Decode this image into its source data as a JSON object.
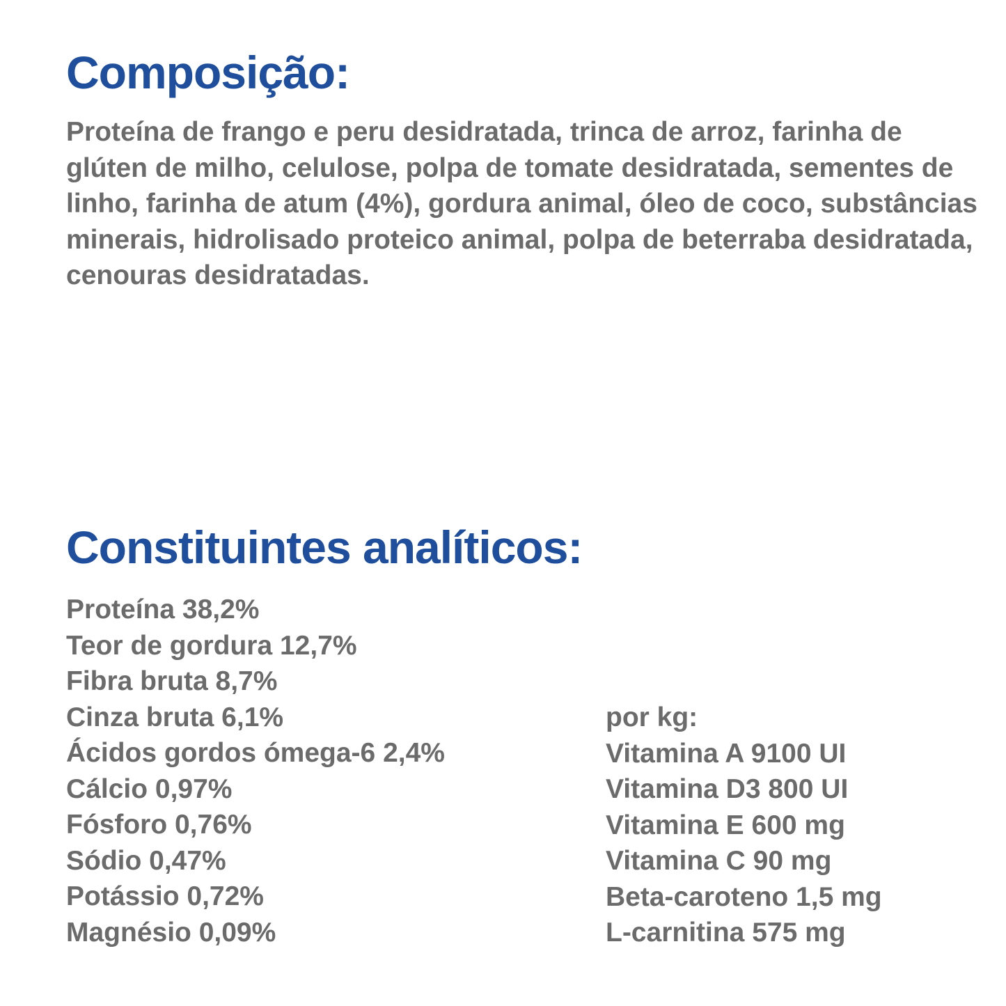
{
  "composition": {
    "title": "Composição:",
    "text": "Proteína de frango e peru desidratada, trinca de arroz, farinha de glúten de milho, celulose, polpa de tomate desidratada, sementes de linho, farinha de atum (4%), gordura animal, óleo de coco, substâncias minerais, hidrolisado proteico animal, polpa de beterraba desidratada, cenouras desidratadas."
  },
  "constituents": {
    "title": "Constituintes analíticos:",
    "items": [
      "Proteína 38,2%",
      "Teor de gordura 12,7%",
      "Fibra bruta 8,7%",
      "Cinza bruta 6,1%",
      "Ácidos gordos ómega-6 2,4%",
      "Cálcio 0,97%",
      "Fósforo 0,76%",
      "Sódio 0,47%",
      "Potássio 0,72%",
      "Magnésio 0,09%"
    ]
  },
  "per_kg": {
    "title": "por kg:",
    "items": [
      "Vitamina A 9100 UI",
      "Vitamina D3 800 UI",
      "Vitamina E 600 mg",
      "Vitamina C 90 mg",
      "Beta-caroteno 1,5 mg",
      "L-carnitina 575 mg"
    ]
  },
  "colors": {
    "heading": "#1f4e9c",
    "body_text": "#6b6b6b",
    "background": "#ffffff"
  }
}
